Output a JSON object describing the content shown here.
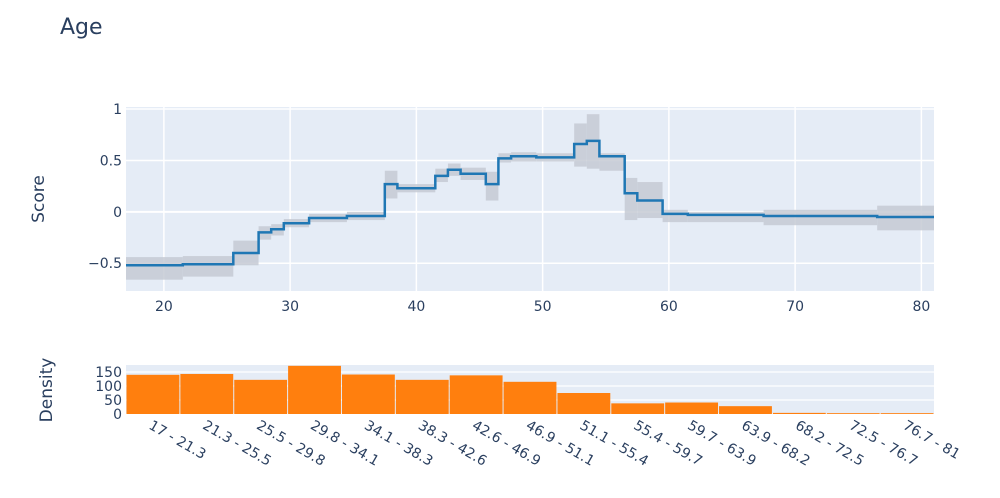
{
  "chart_data": [
    {
      "type": "line",
      "title": "Age",
      "xlabel": "",
      "ylabel": "Score",
      "xlim": [
        17,
        81
      ],
      "ylim": [
        -0.77,
        1.02
      ],
      "x_ticks": [
        20,
        30,
        40,
        50,
        60,
        70,
        80
      ],
      "y_ticks": [
        -0.5,
        0,
        0.5,
        1
      ],
      "y_tick_labels": [
        "−0.5",
        "0",
        "0.5",
        "1"
      ],
      "line_shape": "step",
      "color": "#1f77b4",
      "band_color": "#c5cad3",
      "series": [
        {
          "steps": [
            {
              "x0": 17.0,
              "x1": 21.5,
              "y": -0.52,
              "lo": -0.66,
              "hi": -0.44
            },
            {
              "x0": 21.5,
              "x1": 25.5,
              "y": -0.51,
              "lo": -0.63,
              "hi": -0.43
            },
            {
              "x0": 25.5,
              "x1": 27.5,
              "y": -0.4,
              "lo": -0.52,
              "hi": -0.28
            },
            {
              "x0": 27.5,
              "x1": 28.5,
              "y": -0.2,
              "lo": -0.27,
              "hi": -0.14
            },
            {
              "x0": 28.5,
              "x1": 29.5,
              "y": -0.17,
              "lo": -0.23,
              "hi": -0.12
            },
            {
              "x0": 29.5,
              "x1": 31.5,
              "y": -0.11,
              "lo": -0.15,
              "hi": -0.07
            },
            {
              "x0": 31.5,
              "x1": 34.5,
              "y": -0.06,
              "lo": -0.1,
              "hi": -0.02
            },
            {
              "x0": 34.5,
              "x1": 37.5,
              "y": -0.04,
              "lo": -0.08,
              "hi": 0.0
            },
            {
              "x0": 37.5,
              "x1": 38.5,
              "y": 0.27,
              "lo": 0.13,
              "hi": 0.4
            },
            {
              "x0": 38.5,
              "x1": 41.5,
              "y": 0.23,
              "lo": 0.19,
              "hi": 0.27
            },
            {
              "x0": 41.5,
              "x1": 42.5,
              "y": 0.35,
              "lo": 0.29,
              "hi": 0.42
            },
            {
              "x0": 42.5,
              "x1": 43.5,
              "y": 0.41,
              "lo": 0.35,
              "hi": 0.47
            },
            {
              "x0": 43.5,
              "x1": 45.5,
              "y": 0.37,
              "lo": 0.31,
              "hi": 0.43
            },
            {
              "x0": 45.5,
              "x1": 46.5,
              "y": 0.27,
              "lo": 0.11,
              "hi": 0.39
            },
            {
              "x0": 46.5,
              "x1": 47.5,
              "y": 0.52,
              "lo": 0.48,
              "hi": 0.57
            },
            {
              "x0": 47.5,
              "x1": 49.5,
              "y": 0.54,
              "lo": 0.49,
              "hi": 0.58
            },
            {
              "x0": 49.5,
              "x1": 52.5,
              "y": 0.53,
              "lo": 0.49,
              "hi": 0.57
            },
            {
              "x0": 52.5,
              "x1": 53.5,
              "y": 0.66,
              "lo": 0.44,
              "hi": 0.86
            },
            {
              "x0": 53.5,
              "x1": 54.5,
              "y": 0.69,
              "lo": 0.42,
              "hi": 0.95
            },
            {
              "x0": 54.5,
              "x1": 56.5,
              "y": 0.54,
              "lo": 0.4,
              "hi": 0.57
            },
            {
              "x0": 56.5,
              "x1": 57.5,
              "y": 0.18,
              "lo": -0.08,
              "hi": 0.33
            },
            {
              "x0": 57.5,
              "x1": 59.5,
              "y": 0.11,
              "lo": -0.06,
              "hi": 0.29
            },
            {
              "x0": 59.5,
              "x1": 61.5,
              "y": -0.02,
              "lo": -0.1,
              "hi": 0.02
            },
            {
              "x0": 61.5,
              "x1": 67.5,
              "y": -0.03,
              "lo": -0.1,
              "hi": 0.0
            },
            {
              "x0": 67.5,
              "x1": 76.5,
              "y": -0.04,
              "lo": -0.13,
              "hi": 0.02
            },
            {
              "x0": 76.5,
              "x1": 81.0,
              "y": -0.05,
              "lo": -0.18,
              "hi": 0.06
            }
          ]
        }
      ]
    },
    {
      "type": "bar",
      "xlabel": "",
      "ylabel": "Density",
      "ylim": [
        0,
        175
      ],
      "y_ticks": [
        0,
        50,
        100,
        150
      ],
      "y_tick_labels": [
        "0",
        "50",
        "100",
        "150"
      ],
      "color": "#ff7f0e",
      "categories": [
        "17 - 21.3",
        "21.3 - 25.5",
        "25.5 - 29.8",
        "29.8 - 34.1",
        "34.1 - 38.3",
        "38.3 - 42.6",
        "42.6 - 46.9",
        "46.9 - 51.1",
        "51.1 - 55.4",
        "55.4 - 59.7",
        "59.7 - 63.9",
        "63.9 - 68.2",
        "68.2 - 72.5",
        "72.5 - 76.7",
        "76.7 - 81"
      ],
      "values": [
        140,
        143,
        122,
        172,
        141,
        122,
        138,
        115,
        75,
        38,
        41,
        28,
        4,
        3,
        3
      ]
    }
  ]
}
